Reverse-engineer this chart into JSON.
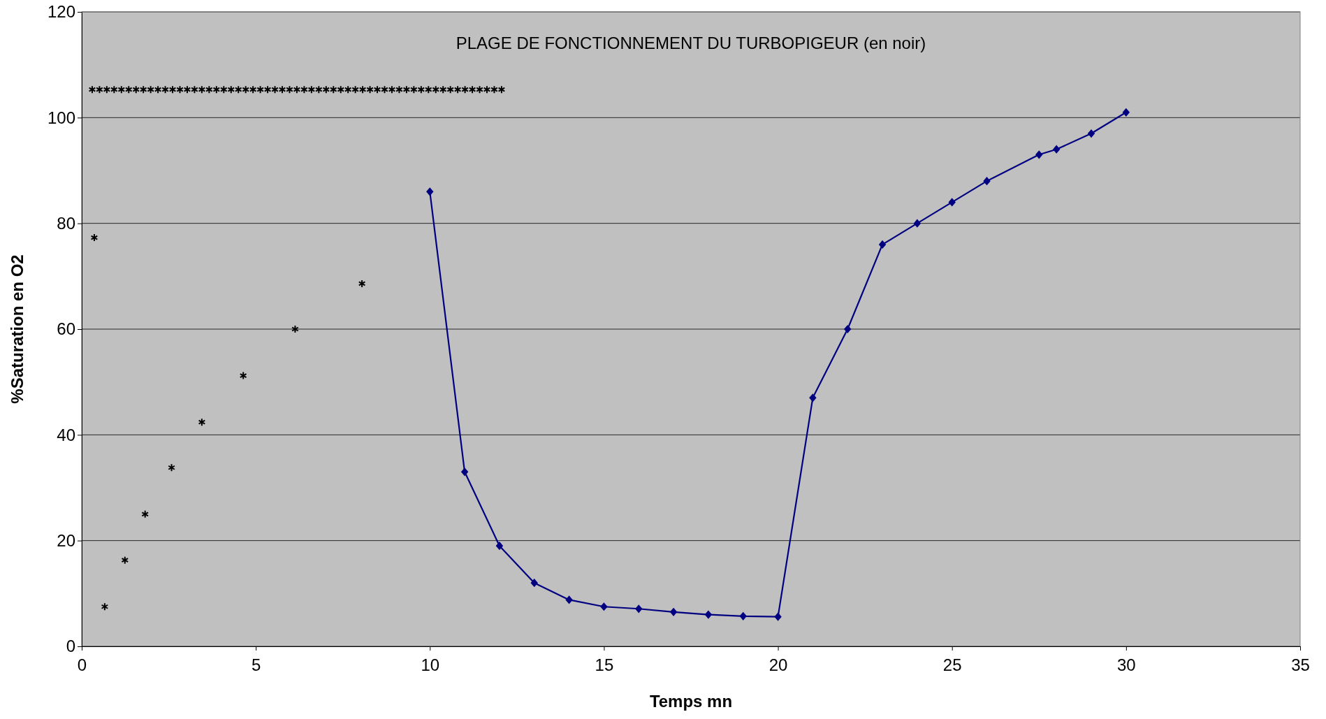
{
  "chart_data": {
    "type": "line",
    "title": "PLAGE DE FONCTIONNEMENT DU TURBOPIGEUR (en noir)",
    "xlabel": "Temps mn",
    "ylabel": "%Saturation en O2",
    "x": [
      10,
      11,
      12,
      13,
      14,
      15,
      16,
      17,
      18,
      19,
      20,
      21,
      22,
      23,
      24,
      25,
      26,
      27.5,
      28,
      29,
      30
    ],
    "series": [
      {
        "color": "#000080",
        "values": [
          86,
          33,
          19,
          12,
          8.8,
          7.5,
          7.1,
          6.5,
          6,
          5.7,
          5.6,
          47,
          60,
          76,
          80,
          84,
          88,
          93,
          94,
          97,
          101
        ]
      },
      {
        "type": "scatter",
        "marker": "cross",
        "color": "#000000",
        "x": [
          0.36,
          0.66,
          1.24,
          1.82,
          2.58,
          3.45,
          4.64,
          6.13,
          8.05,
          0.3,
          0.51,
          0.72,
          0.93,
          1.14,
          1.35,
          1.56,
          1.77,
          1.98,
          2.19,
          2.4,
          2.61,
          2.82,
          3.03,
          3.24,
          3.45,
          3.66,
          3.87,
          4.08,
          4.29,
          4.5,
          4.71,
          4.92,
          5.13,
          5.34,
          5.55,
          5.76,
          5.97,
          6.18,
          6.39,
          6.6,
          6.81,
          7.02,
          7.23,
          7.44,
          7.65,
          7.86,
          8.07,
          8.28,
          8.49,
          8.7,
          8.91,
          9.12,
          9.33,
          9.54,
          9.75,
          9.96,
          10.17,
          10.38,
          10.59,
          10.8,
          11.01,
          11.22,
          11.43,
          11.64,
          11.85,
          12.06
        ],
        "values": [
          77.3,
          7.5,
          16.3,
          25,
          33.8,
          42.4,
          51.2,
          60,
          68.6,
          105.3,
          105.3,
          105.3,
          105.3,
          105.3,
          105.3,
          105.3,
          105.3,
          105.3,
          105.3,
          105.3,
          105.3,
          105.3,
          105.3,
          105.3,
          105.3,
          105.3,
          105.3,
          105.3,
          105.3,
          105.3,
          105.3,
          105.3,
          105.3,
          105.3,
          105.3,
          105.3,
          105.3,
          105.3,
          105.3,
          105.3,
          105.3,
          105.3,
          105.3,
          105.3,
          105.3,
          105.3,
          105.3,
          105.3,
          105.3,
          105.3,
          105.3,
          105.3,
          105.3,
          105.3,
          105.3,
          105.3,
          105.3,
          105.3,
          105.3,
          105.3,
          105.3,
          105.3,
          105.3,
          105.3,
          105.3,
          105.3
        ]
      }
    ],
    "xlim": [
      0,
      35
    ],
    "xticks": [
      0,
      5,
      10,
      15,
      20,
      25,
      30,
      35
    ],
    "ylim": [
      0,
      120
    ],
    "yticks": [
      0,
      20,
      40,
      60,
      80,
      100,
      120
    ],
    "grid": "y",
    "marker": "diamond",
    "line_style": "solid"
  }
}
